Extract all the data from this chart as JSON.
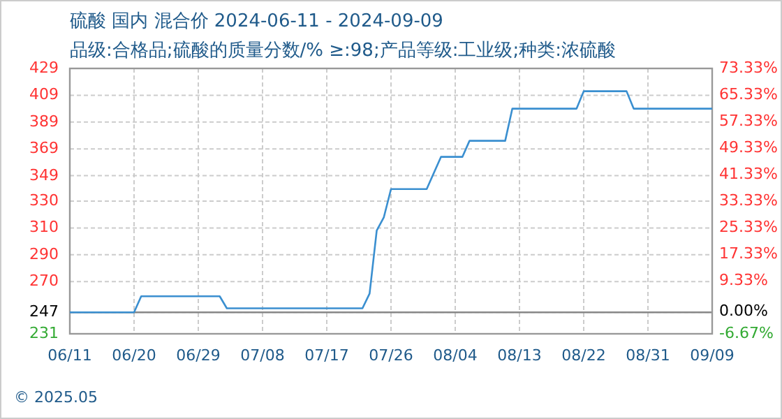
{
  "chart_data": {
    "type": "line",
    "title": "硫酸 国内 混合价 2024-06-11 - 2024-09-09",
    "subtitle": "品级:合格品;硫酸的质量分数/% ≥:98;产品等级:工业级;种类:浓硫酸",
    "x": [
      "2024-06-11",
      "2024-06-20",
      "2024-06-21",
      "2024-07-02",
      "2024-07-03",
      "2024-07-22",
      "2024-07-23",
      "2024-07-24",
      "2024-07-25",
      "2024-07-26",
      "2024-07-31",
      "2024-08-02",
      "2024-08-05",
      "2024-08-06",
      "2024-08-11",
      "2024-08-12",
      "2024-08-21",
      "2024-08-22",
      "2024-08-28",
      "2024-08-29",
      "2024-09-09"
    ],
    "series": [
      {
        "color": "#3a8fd0",
        "values": [
          247,
          247,
          259,
          259,
          250,
          250,
          261,
          308,
          318,
          339,
          339,
          363,
          363,
          375,
          375,
          399,
          399,
          412,
          412,
          399,
          399
        ]
      }
    ],
    "xlim": [
      "2024-06-11",
      "2024-09-09"
    ],
    "xticks": [
      {
        "value": "2024-06-11",
        "label": "06/11"
      },
      {
        "value": "2024-06-20",
        "label": "06/20"
      },
      {
        "value": "2024-06-29",
        "label": "06/29"
      },
      {
        "value": "2024-07-08",
        "label": "07/08"
      },
      {
        "value": "2024-07-17",
        "label": "07/17"
      },
      {
        "value": "2024-07-26",
        "label": "07/26"
      },
      {
        "value": "2024-08-04",
        "label": "08/04"
      },
      {
        "value": "2024-08-13",
        "label": "08/13"
      },
      {
        "value": "2024-08-22",
        "label": "08/22"
      },
      {
        "value": "2024-08-31",
        "label": "08/31"
      },
      {
        "value": "2024-09-09",
        "label": "09/09"
      }
    ],
    "ylim": [
      231,
      429
    ],
    "yticks": [
      231,
      247,
      270,
      290,
      310,
      330,
      349,
      369,
      389,
      409,
      429
    ],
    "y2lim": [
      -6.67,
      73.33
    ],
    "y2ticks": [
      {
        "value": -6.67,
        "label": "-6.67%"
      },
      {
        "value": 0,
        "label": "0.00%"
      },
      {
        "value": 9.33,
        "label": "9.33%"
      },
      {
        "value": 17.33,
        "label": "17.33%"
      },
      {
        "value": 25.33,
        "label": "25.33%"
      },
      {
        "value": 33.33,
        "label": "33.33%"
      },
      {
        "value": 41.33,
        "label": "41.33%"
      },
      {
        "value": 49.33,
        "label": "49.33%"
      },
      {
        "value": 57.33,
        "label": "57.33%"
      },
      {
        "value": 65.33,
        "label": "65.33%"
      },
      {
        "value": 73.33,
        "label": "73.33%"
      }
    ],
    "ref_lines": [
      {
        "axis": "y",
        "value": 247,
        "color": "#888888",
        "line_style": "solid"
      }
    ],
    "grid": true,
    "annotations": [
      "© 2025.05"
    ]
  }
}
